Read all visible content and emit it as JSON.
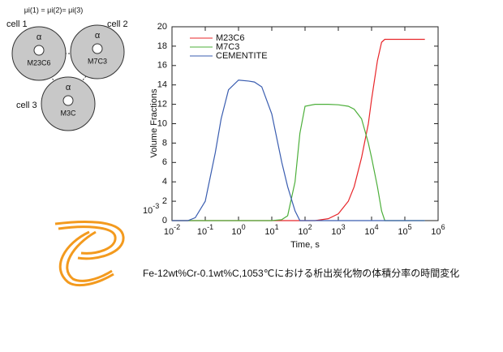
{
  "diagram": {
    "equation": "μi(1) = μi(2)= μi(3)",
    "cells": [
      {
        "label": "cell 1",
        "phase": "α",
        "carbide": "M23C6"
      },
      {
        "label": "cell 2",
        "phase": "α",
        "carbide": "M7C3"
      },
      {
        "label": "cell 3",
        "phase": "α",
        "carbide": "M3C"
      }
    ]
  },
  "chart_data": {
    "type": "line",
    "x_label": "Time, s",
    "y_label": "Volume Fractions",
    "y_scale_base": "10",
    "y_scale_exponent": "-3",
    "x_log": true,
    "legend": "top-left",
    "x": [
      0.01,
      0.03,
      0.05,
      0.1,
      0.2,
      0.3,
      0.5,
      1,
      2,
      3,
      5,
      10,
      20,
      30,
      50,
      70,
      100,
      200,
      500,
      1000,
      2000,
      3000,
      5000,
      8000,
      10000,
      15000,
      20000,
      25000,
      30000,
      100000,
      400000
    ],
    "series": [
      {
        "name": "M23C6",
        "color": "#e8262a",
        "values": [
          0,
          0,
          0,
          0,
          0,
          0,
          0,
          0,
          0,
          0,
          0,
          0,
          0,
          0,
          0,
          0,
          0,
          0,
          0.2,
          0.7,
          2,
          3.5,
          6.5,
          10,
          12.5,
          16.5,
          18.4,
          18.7,
          18.7,
          18.7,
          18.7
        ]
      },
      {
        "name": "M7C3",
        "color": "#4caf3a",
        "values": [
          0,
          0,
          0,
          0,
          0,
          0,
          0,
          0,
          0,
          0,
          0,
          0,
          0.1,
          0.5,
          4,
          9,
          11.8,
          12,
          12,
          11.95,
          11.8,
          11.5,
          10.5,
          8,
          6.5,
          3.5,
          1,
          0,
          0,
          0,
          0
        ]
      },
      {
        "name": "CEMENTITE",
        "color": "#3a5db0",
        "values": [
          0,
          0,
          0.3,
          2,
          7,
          10.5,
          13.5,
          14.5,
          14.4,
          14.3,
          13.8,
          11,
          6,
          3.5,
          1,
          0,
          0,
          0,
          0,
          0,
          0,
          0,
          0,
          0,
          0,
          0,
          0,
          0,
          0,
          0,
          0
        ]
      }
    ],
    "xlim": [
      0.01,
      1000000
    ],
    "xticks": [
      {
        "value": 0.01,
        "label": "10-2"
      },
      {
        "value": 0.1,
        "label": "10-1"
      },
      {
        "value": 1,
        "label": "100"
      },
      {
        "value": 10,
        "label": "101"
      },
      {
        "value": 100,
        "label": "102"
      },
      {
        "value": 1000,
        "label": "103"
      },
      {
        "value": 10000,
        "label": "104"
      },
      {
        "value": 100000,
        "label": "105"
      },
      {
        "value": 1000000,
        "label": "106"
      }
    ],
    "ylim": [
      0,
      20
    ],
    "yticks": [
      0,
      2,
      4,
      6,
      8,
      10,
      12,
      14,
      16,
      18,
      20
    ]
  },
  "caption": "Fe-12wt%Cr-0.1wt%C,1053℃における析出炭化物の体積分率の時間変化"
}
